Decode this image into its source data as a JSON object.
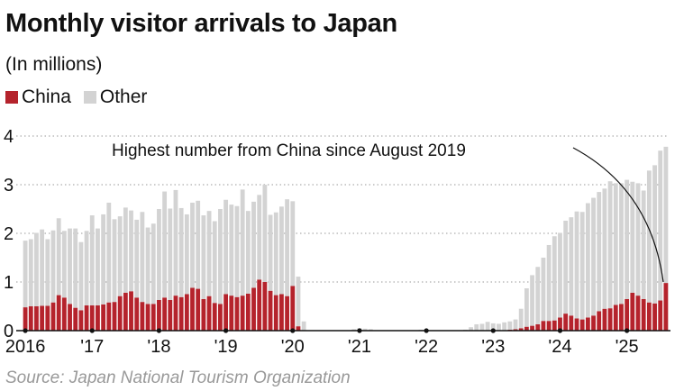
{
  "chart_data": {
    "type": "bar",
    "stacked": true,
    "title": "Monthly visitor arrivals to Japan",
    "subtitle": "(In millions)",
    "source": "Source: Japan National Tourism Organization",
    "annotation": "Highest number from China since August 2019",
    "xlabel": "",
    "ylabel": "",
    "ylim": [
      0,
      4
    ],
    "y_ticks": [
      0,
      1,
      2,
      3,
      4
    ],
    "x_tick_labels": [
      "2016",
      "'17",
      "'18",
      "'19",
      "'20",
      "'21",
      "'22",
      "'23",
      "'24",
      "'25"
    ],
    "grid": "horizontal dotted",
    "legend_placement": "top-left",
    "colors": {
      "china": "#b5232c",
      "other": "#d3d3d3",
      "axis": "#111111",
      "grid": "#999999"
    },
    "start_month": "2016-01",
    "series": [
      {
        "name": "China",
        "values": [
          0.48,
          0.5,
          0.5,
          0.51,
          0.51,
          0.58,
          0.73,
          0.68,
          0.55,
          0.47,
          0.42,
          0.52,
          0.52,
          0.52,
          0.54,
          0.58,
          0.59,
          0.71,
          0.78,
          0.81,
          0.68,
          0.59,
          0.55,
          0.55,
          0.63,
          0.68,
          0.63,
          0.72,
          0.69,
          0.75,
          0.88,
          0.86,
          0.65,
          0.71,
          0.57,
          0.55,
          0.75,
          0.72,
          0.69,
          0.72,
          0.76,
          0.88,
          1.05,
          1.0,
          0.82,
          0.73,
          0.75,
          0.71,
          0.92,
          0.09,
          0.01,
          0.0,
          0.0,
          0.0,
          0.0,
          0.0,
          0.0,
          0.0,
          0.0,
          0.0,
          0.0,
          0.0,
          0.0,
          0.0,
          0.0,
          0.0,
          0.0,
          0.0,
          0.0,
          0.0,
          0.0,
          0.0,
          0.0,
          0.0,
          0.0,
          0.0,
          0.0,
          0.0,
          0.0,
          0.0,
          0.0,
          0.0,
          0.0,
          0.0,
          0.01,
          0.01,
          0.01,
          0.02,
          0.03,
          0.05,
          0.08,
          0.1,
          0.13,
          0.2,
          0.2,
          0.21,
          0.27,
          0.35,
          0.31,
          0.25,
          0.23,
          0.27,
          0.31,
          0.4,
          0.45,
          0.46,
          0.53,
          0.55,
          0.65,
          0.78,
          0.72,
          0.65,
          0.58,
          0.56,
          0.62,
          0.98
        ]
      },
      {
        "name": "Other",
        "values": [
          1.37,
          1.38,
          1.51,
          1.57,
          1.37,
          1.48,
          1.58,
          1.37,
          1.55,
          1.63,
          1.4,
          1.53,
          1.85,
          1.58,
          1.85,
          2.05,
          1.7,
          1.64,
          1.75,
          1.66,
          1.6,
          1.85,
          1.57,
          1.65,
          1.87,
          2.18,
          1.88,
          2.17,
          1.83,
          1.64,
          1.75,
          1.81,
          1.72,
          1.75,
          1.68,
          1.95,
          1.94,
          1.87,
          1.87,
          2.18,
          1.7,
          1.77,
          1.74,
          2.0,
          1.56,
          1.7,
          1.8,
          1.99,
          1.74,
          1.02,
          0.18,
          0.0,
          0.0,
          0.0,
          0.0,
          0.0,
          0.0,
          0.0,
          0.0,
          0.03,
          0.05,
          0.04,
          0.03,
          0.0,
          0.0,
          0.0,
          0.0,
          0.0,
          0.0,
          0.0,
          0.0,
          0.02,
          0.0,
          0.0,
          0.0,
          0.0,
          0.0,
          0.0,
          0.01,
          0.02,
          0.07,
          0.13,
          0.14,
          0.18,
          0.14,
          0.13,
          0.16,
          0.17,
          0.2,
          0.4,
          0.79,
          1.04,
          1.18,
          1.3,
          1.56,
          1.73,
          1.74,
          1.91,
          2.02,
          2.2,
          2.21,
          2.35,
          2.42,
          2.45,
          2.47,
          2.61,
          2.5,
          2.48,
          2.45,
          2.28,
          2.31,
          2.23,
          2.71,
          2.84,
          3.08,
          2.8
        ]
      }
    ]
  }
}
